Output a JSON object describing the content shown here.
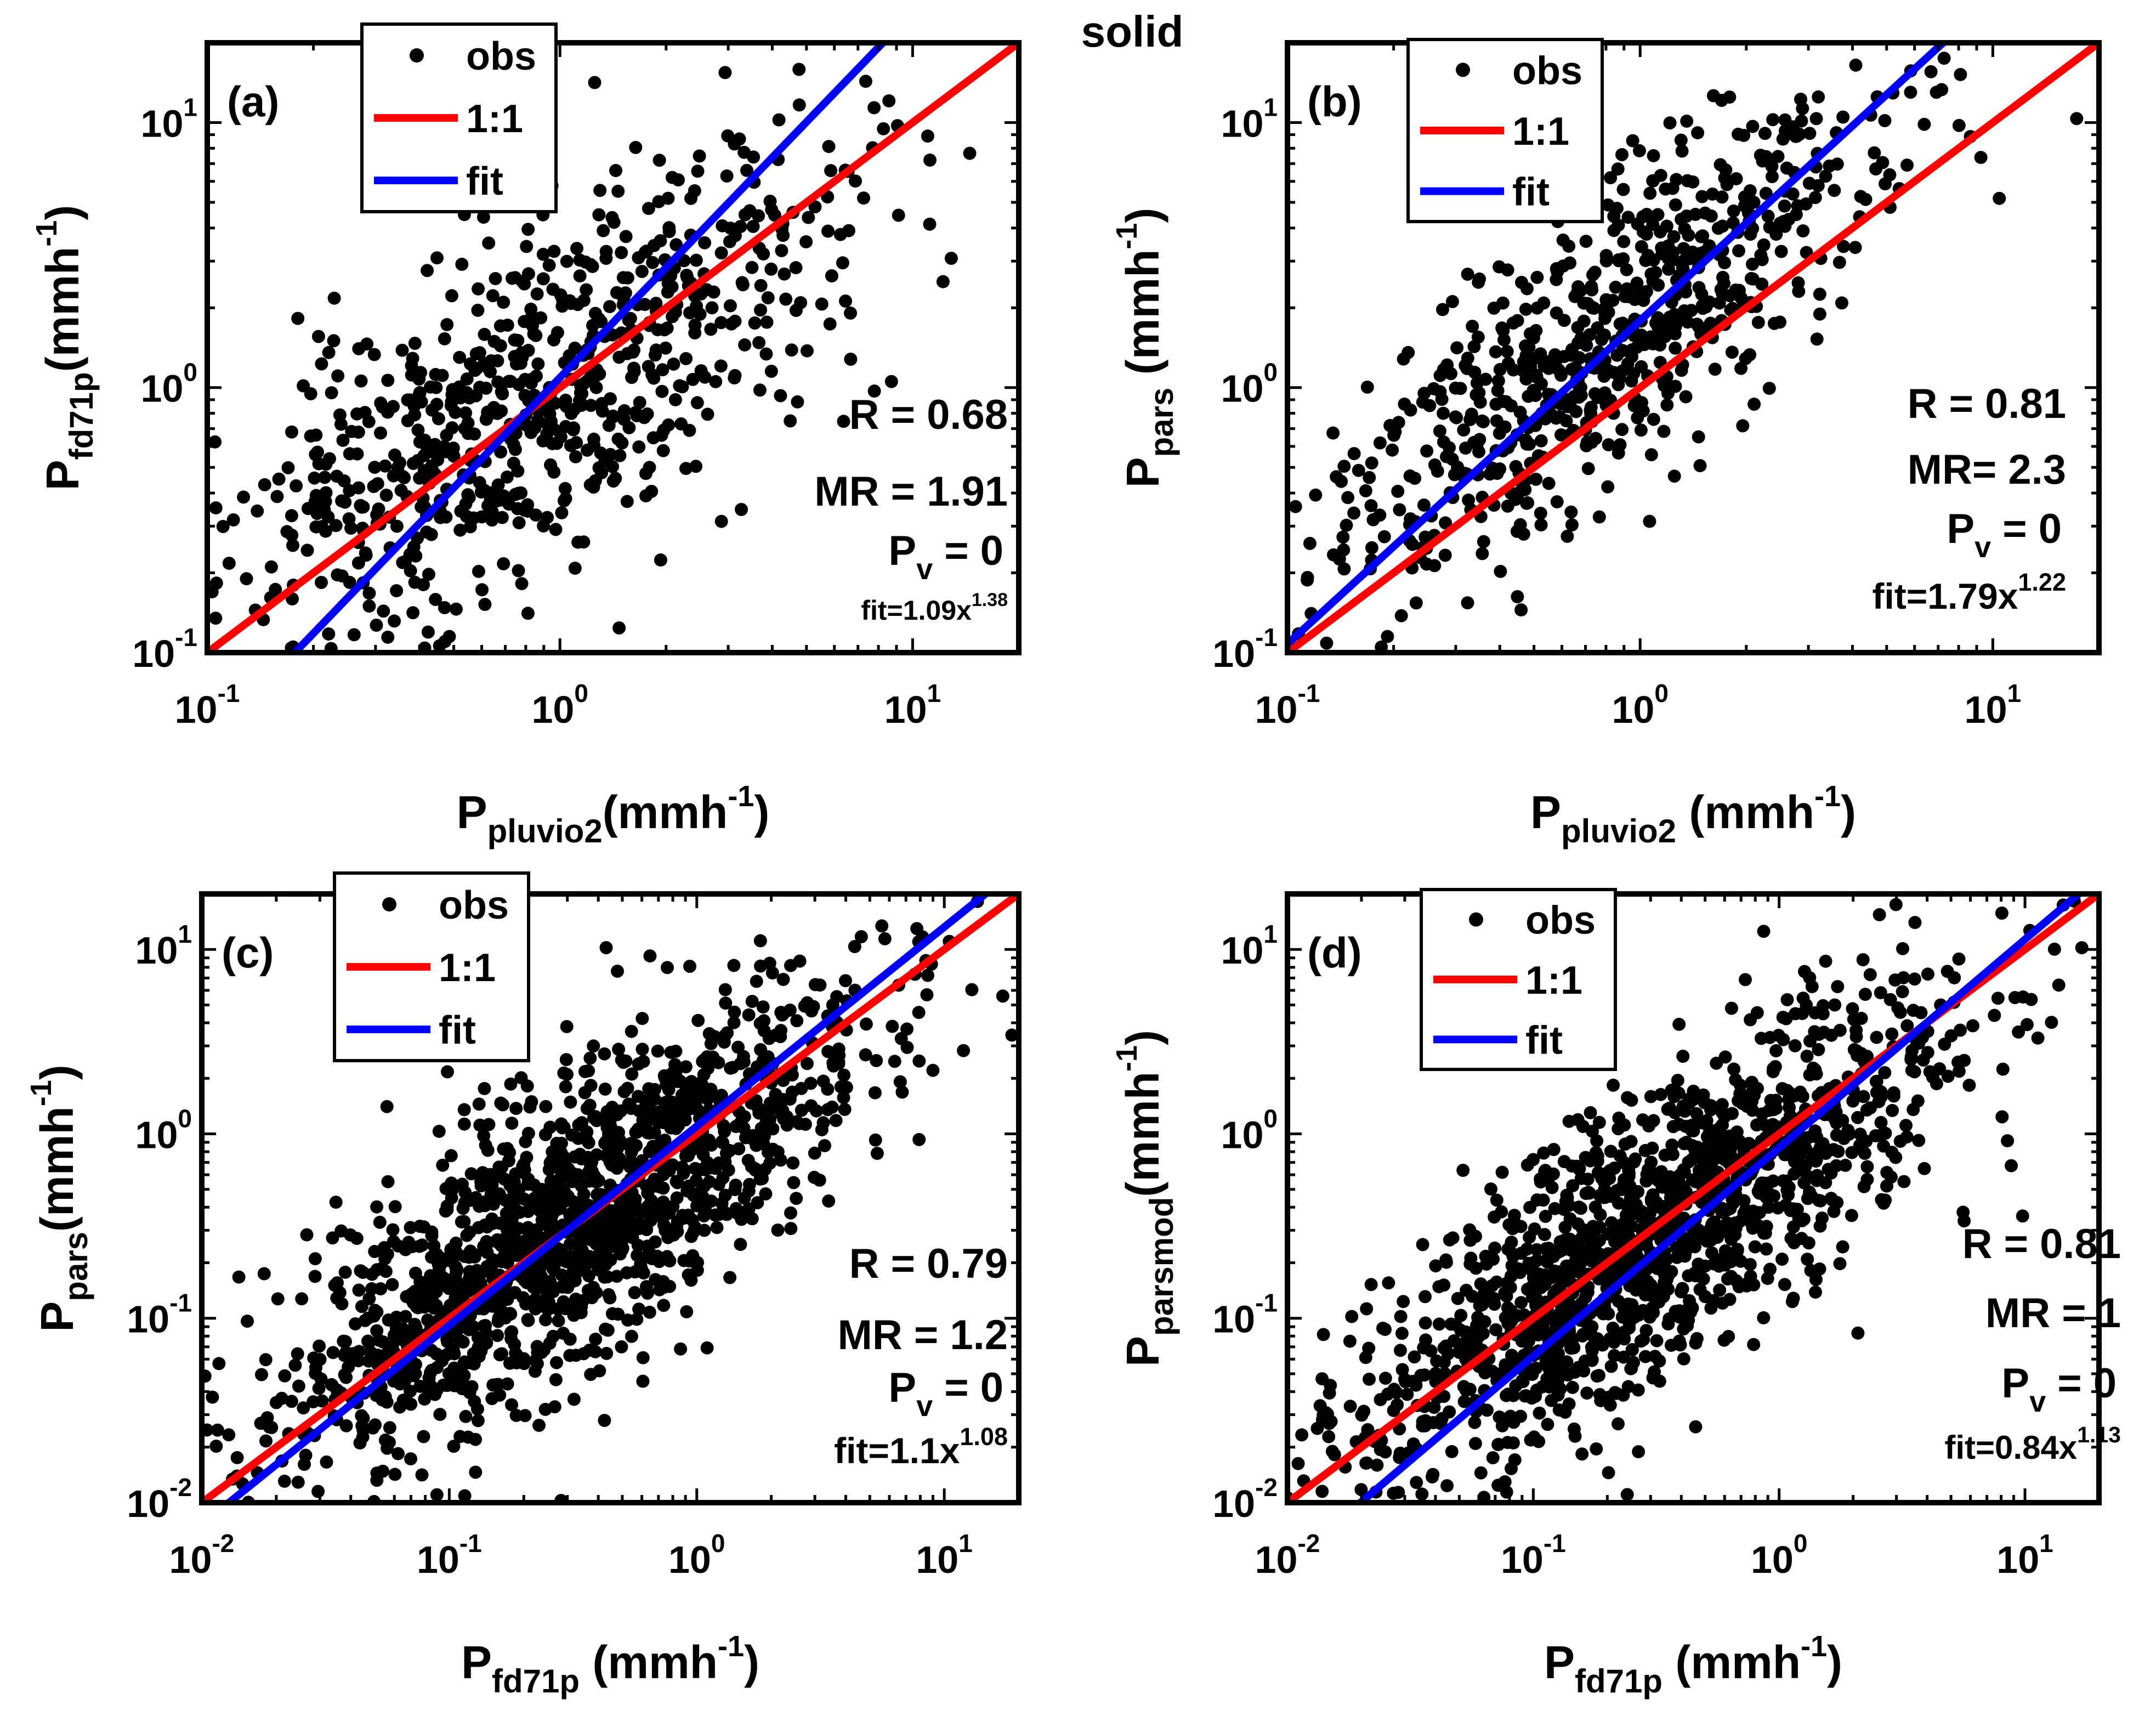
{
  "figure_title": "solid",
  "legend": {
    "obs": "obs",
    "one_to_one": "1:1",
    "fit": "fit"
  },
  "colors": {
    "points": "#000000",
    "one_to_one": "#ff0000",
    "fit": "#0000ff",
    "axes": "#000000",
    "background": "#ffffff"
  },
  "chart_data": [
    {
      "panel": "(a)",
      "type": "scatter",
      "xscale": "log",
      "yscale": "log",
      "xlim": [
        0.1,
        20
      ],
      "ylim": [
        0.1,
        20
      ],
      "xticks": [
        {
          "value": 0.1,
          "base": "10",
          "exp": "-1"
        },
        {
          "value": 1,
          "base": "10",
          "exp": "0"
        },
        {
          "value": 10,
          "base": "10",
          "exp": "1"
        }
      ],
      "yticks": [
        {
          "value": 0.1,
          "base": "10",
          "exp": "-1"
        },
        {
          "value": 1,
          "base": "10",
          "exp": "0"
        },
        {
          "value": 10,
          "base": "10",
          "exp": "1"
        }
      ],
      "xlabel": {
        "main": "P",
        "sub": "pluvio2",
        "unit": "(mmh",
        "sup": "-1",
        "close": ")"
      },
      "ylabel": {
        "main": "P",
        "sub": "fd71p",
        "unit": "(mmh",
        "sup": "-1",
        "close": ")"
      },
      "stats": {
        "R": "R = 0.68",
        "MR": "MR = 1.91",
        "Pv_main": "P",
        "Pv_sub": "v",
        "Pv_rest": " = 0",
        "fit_text": "fit=1.09x",
        "fit_exp": "1.38"
      },
      "fit": {
        "a": 1.09,
        "b": 1.38
      },
      "cloud": {
        "n": 760,
        "cx": 0.85,
        "cy": 0.95,
        "sx": 0.44,
        "sy": 0.46,
        "rho": 0.68,
        "seed": 11
      }
    },
    {
      "panel": "(b)",
      "type": "scatter",
      "xscale": "log",
      "yscale": "log",
      "xlim": [
        0.1,
        20
      ],
      "ylim": [
        0.1,
        20
      ],
      "xticks": [
        {
          "value": 0.1,
          "base": "10",
          "exp": "-1"
        },
        {
          "value": 1,
          "base": "10",
          "exp": "0"
        },
        {
          "value": 10,
          "base": "10",
          "exp": "1"
        }
      ],
      "yticks": [
        {
          "value": 0.1,
          "base": "10",
          "exp": "-1"
        },
        {
          "value": 1,
          "base": "10",
          "exp": "0"
        },
        {
          "value": 10,
          "base": "10",
          "exp": "1"
        }
      ],
      "xlabel": {
        "main": "P",
        "sub": "pluvio2",
        "unit": " (mmh",
        "sup": "-1",
        "close": ")"
      },
      "ylabel": {
        "main": "P",
        "sub": "pars",
        "unit": " (mmh",
        "sup": "-1",
        "close": ")"
      },
      "stats": {
        "R": "R = 0.81",
        "MR": "MR= 2.3",
        "Pv_main": "P",
        "Pv_sub": "v",
        "Pv_rest": " = 0",
        "fit_text": "fit=1.79x",
        "fit_exp": "1.22"
      },
      "fit": {
        "a": 1.79,
        "b": 1.22
      },
      "cloud": {
        "n": 720,
        "cx": 0.75,
        "cy": 1.4,
        "sx": 0.4,
        "sy": 0.48,
        "rho": 0.81,
        "seed": 23
      }
    },
    {
      "panel": "(c)",
      "type": "scatter",
      "xscale": "log",
      "yscale": "log",
      "xlim": [
        0.01,
        20
      ],
      "ylim": [
        0.01,
        20
      ],
      "xticks": [
        {
          "value": 0.01,
          "base": "10",
          "exp": "-2"
        },
        {
          "value": 0.1,
          "base": "10",
          "exp": "-1"
        },
        {
          "value": 1,
          "base": "10",
          "exp": "0"
        },
        {
          "value": 10,
          "base": "10",
          "exp": "1"
        }
      ],
      "yticks": [
        {
          "value": 0.01,
          "base": "10",
          "exp": "-2"
        },
        {
          "value": 0.1,
          "base": "10",
          "exp": "-1"
        },
        {
          "value": 1,
          "base": "10",
          "exp": "0"
        },
        {
          "value": 10,
          "base": "10",
          "exp": "1"
        }
      ],
      "xlabel": {
        "main": "P",
        "sub": "fd71p",
        "unit": " (mmh",
        "sup": "-1",
        "close": ")"
      },
      "ylabel": {
        "main": "P",
        "sub": "pars",
        "unit": "(mmh",
        "sup": "-1",
        "close": ")"
      },
      "stats": {
        "R": "R = 0.79",
        "MR": "MR = 1.2",
        "Pv_main": "P",
        "Pv_sub": "v",
        "Pv_rest": " = 0",
        "fit_text": "fit=1.1x",
        "fit_exp": "1.08"
      },
      "fit": {
        "a": 1.1,
        "b": 1.08
      },
      "cloud": {
        "n": 1500,
        "cx": 0.3,
        "cy": 0.32,
        "sx": 0.62,
        "sy": 0.66,
        "rho": 0.79,
        "seed": 37
      }
    },
    {
      "panel": "(d)",
      "type": "scatter",
      "xscale": "log",
      "yscale": "log",
      "xlim": [
        0.01,
        20
      ],
      "ylim": [
        0.01,
        20
      ],
      "xticks": [
        {
          "value": 0.01,
          "base": "10",
          "exp": "-2"
        },
        {
          "value": 0.1,
          "base": "10",
          "exp": "-1"
        },
        {
          "value": 1,
          "base": "10",
          "exp": "0"
        },
        {
          "value": 10,
          "base": "10",
          "exp": "1"
        }
      ],
      "yticks": [
        {
          "value": 0.01,
          "base": "10",
          "exp": "-2"
        },
        {
          "value": 0.1,
          "base": "10",
          "exp": "-1"
        },
        {
          "value": 1,
          "base": "10",
          "exp": "0"
        },
        {
          "value": 10,
          "base": "10",
          "exp": "1"
        }
      ],
      "xlabel": {
        "main": "P",
        "sub": "fd71p",
        "unit": " (mmh",
        "sup": "-1",
        "close": ")"
      },
      "ylabel": {
        "main": "P",
        "sub": "parsmod",
        "unit": "(mmh",
        "sup": "-1",
        "close": ")"
      },
      "stats": {
        "R": "R = 0.81",
        "MR": "MR = 1",
        "Pv_main": "P",
        "Pv_sub": "v",
        "Pv_rest": " = 0",
        "fit_text": "fit=0.84x",
        "fit_exp": "1.13"
      },
      "fit": {
        "a": 0.84,
        "b": 1.13
      },
      "cloud": {
        "n": 1500,
        "cx": 0.3,
        "cy": 0.28,
        "sx": 0.62,
        "sy": 0.66,
        "rho": 0.81,
        "seed": 53
      }
    }
  ]
}
